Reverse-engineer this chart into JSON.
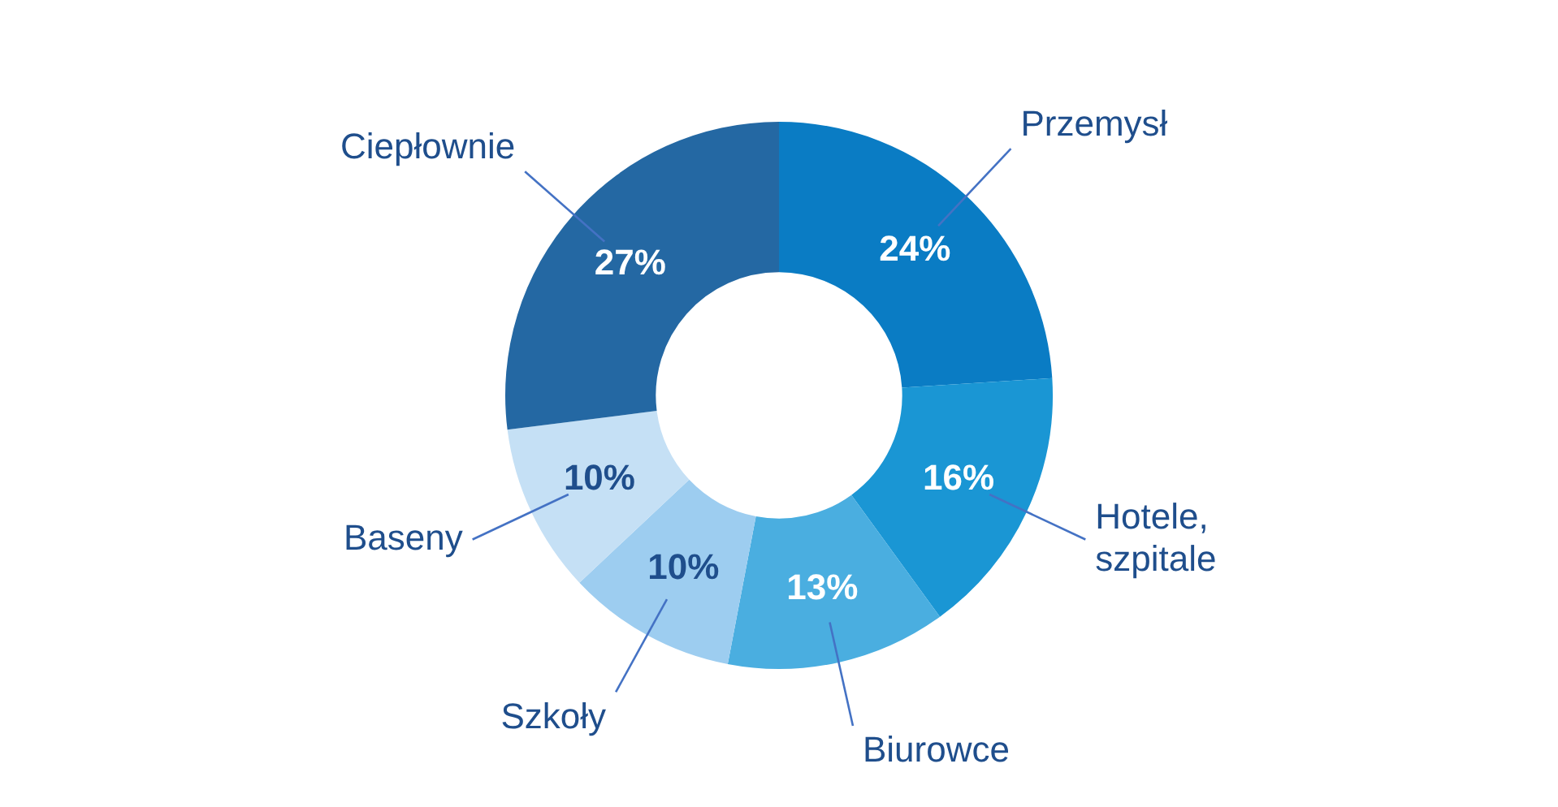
{
  "chart_data": {
    "type": "donut",
    "categories": [
      "Przemysł",
      "Hotele, szpitale",
      "Biurowce",
      "Szkoły",
      "Baseny",
      "Ciepłownie"
    ],
    "values": [
      24,
      16,
      13,
      10,
      10,
      27
    ],
    "value_labels": [
      "24%",
      "16%",
      "13%",
      "10%",
      "10%",
      "27%"
    ],
    "colors": [
      "#0a7cc4",
      "#1a96d4",
      "#4aaee0",
      "#9dcdf0",
      "#c5e0f5",
      "#2468a3"
    ]
  }
}
